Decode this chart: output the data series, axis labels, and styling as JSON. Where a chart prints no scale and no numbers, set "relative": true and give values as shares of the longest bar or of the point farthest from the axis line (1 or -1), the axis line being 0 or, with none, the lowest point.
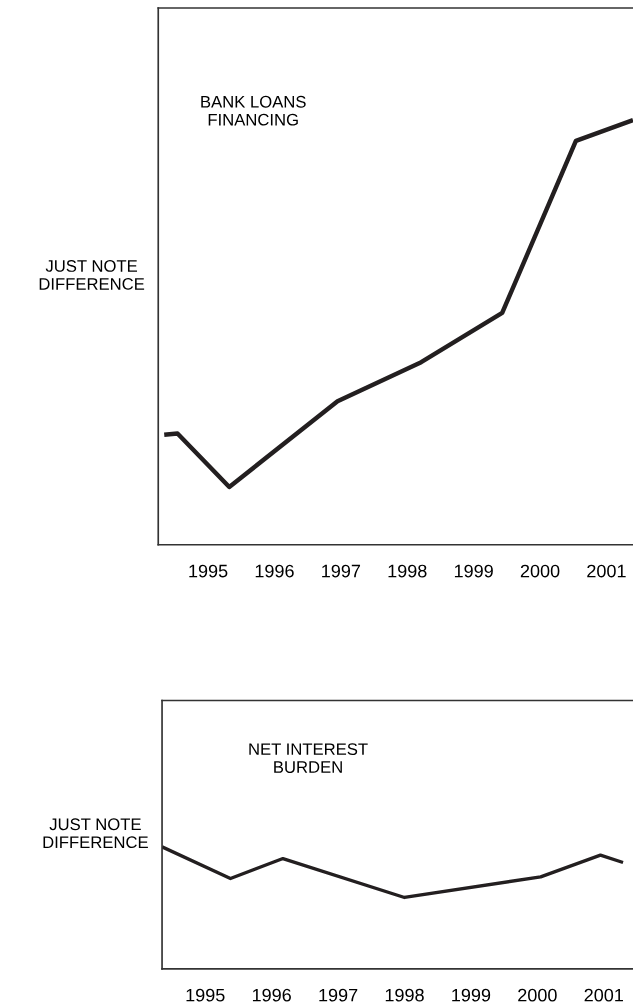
{
  "chart_data": [
    {
      "type": "line",
      "relative": true,
      "ylabel": "JUST NOTE\nDIFFERENCE",
      "annotations": [
        "BANK LOANS\nFINANCING"
      ],
      "xlim": [
        1994.25,
        2001.4
      ],
      "xticks": [
        1995,
        1996,
        1997,
        1998,
        1999,
        2000,
        2001
      ],
      "grid": false,
      "legend": false,
      "marker": "none",
      "line_style": "solid",
      "series": [
        {
          "color": "#231f20",
          "x": [
            1994.34,
            1994.54,
            1995.32,
            1996.95,
            1998.21,
            1999.43,
            2000.54,
            2001.4
          ],
          "values": [
            0.259,
            0.262,
            0.136,
            0.338,
            0.43,
            0.546,
            0.951,
            1.0
          ]
        }
      ]
    },
    {
      "type": "line",
      "relative": true,
      "ylabel": "JUST NOTE\nDIFFERENCE",
      "annotations": [
        "NET INTEREST\nBURDEN"
      ],
      "xlim": [
        1994.35,
        2001.44
      ],
      "xticks": [
        1995,
        1996,
        1997,
        1998,
        1999,
        2000,
        2001
      ],
      "grid": false,
      "legend": false,
      "marker": "none",
      "line_style": "solid",
      "series": [
        {
          "color": "#231f20",
          "x": [
            1994.35,
            1995.38,
            1996.17,
            1998.0,
            2000.05,
            2000.95,
            2001.29
          ],
          "values": [
            1.0,
            0.74,
            0.904,
            0.585,
            0.754,
            0.932,
            0.872
          ]
        }
      ]
    }
  ]
}
